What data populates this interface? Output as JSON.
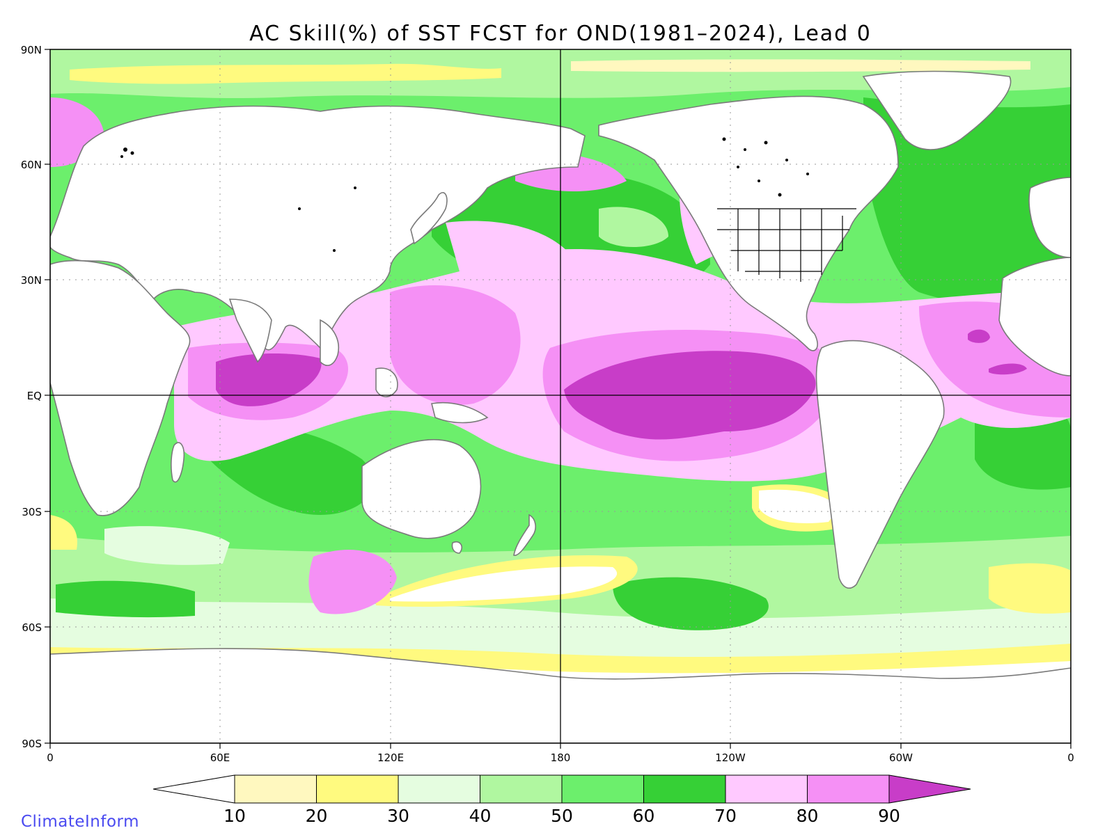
{
  "title": "AC Skill(%) of SST FCST for OND(1981–2024), Lead 0",
  "lat_labels": [
    "90N",
    "60N",
    "30N",
    "EQ",
    "30S",
    "60S",
    "90S"
  ],
  "lon_labels": [
    "0",
    "60E",
    "120E",
    "180",
    "120W",
    "60W",
    "0"
  ],
  "colorbar": {
    "labels": [
      "10",
      "20",
      "30",
      "40",
      "50",
      "60",
      "70",
      "80",
      "90"
    ],
    "colors": [
      "#ffffff",
      "#fff8bf",
      "#fffa7f",
      "#e5fde0",
      "#b0f7a0",
      "#6cef6c",
      "#36d036",
      "#ffc9ff",
      "#f590f5",
      "#c83dc8"
    ]
  },
  "legend": {
    "bins": [
      "<10",
      "10-20",
      "20-30",
      "30-40",
      "40-50",
      "50-60",
      "60-70",
      "70-80",
      "80-90",
      ">90"
    ]
  },
  "credit": "ClimateInform",
  "colors": {
    "land": "#ffffff",
    "coastline": "#7a7a7a",
    "lakes": "#000000",
    "us_states": "#000000",
    "credit_text": "#4a4af0"
  },
  "icons": [
    "world-map",
    "us-state-boundaries"
  ]
}
